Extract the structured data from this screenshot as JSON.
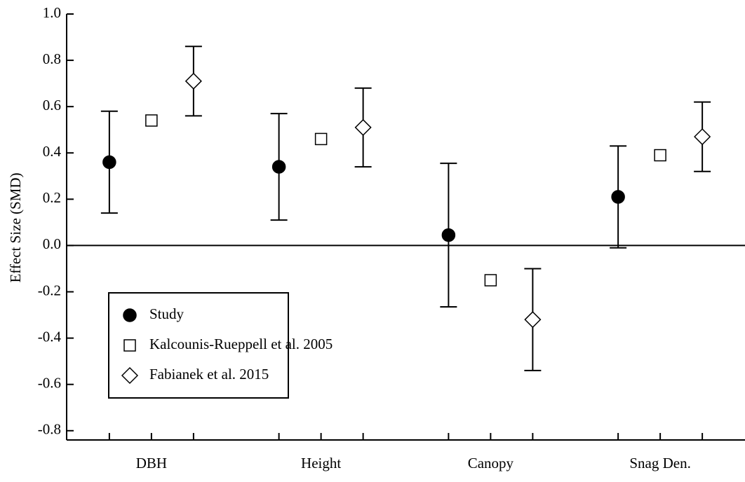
{
  "chart_data": {
    "type": "errorbar",
    "ylabel": "Effect Size (SMD)",
    "categories": [
      "DBH",
      "Height",
      "Canopy",
      "Snag Den."
    ],
    "series": [
      {
        "name": "Study",
        "color": "#000000",
        "marker": "circle",
        "values": [
          0.36,
          0.34,
          0.045,
          0.21
        ],
        "errors": [
          0.22,
          0.23,
          0.31,
          0.22
        ]
      },
      {
        "name": "Kalcounis-Rueppell et al. 2005",
        "color": "#ffffff",
        "marker": "square",
        "values": [
          0.54,
          0.46,
          -0.15,
          0.39
        ]
      },
      {
        "name": "Fabianek et al. 2015",
        "color": "#ffffff",
        "marker": "diamond",
        "values": [
          0.71,
          0.51,
          -0.32,
          0.47
        ],
        "errors": [
          0.15,
          0.17,
          0.22,
          0.15
        ]
      }
    ],
    "ylim": [
      -0.84,
      1.0
    ],
    "yticks": [
      {
        "value": 1.0,
        "label": "1.0"
      },
      0.8,
      0.6,
      0.4,
      0.2,
      {
        "value": 0,
        "label": "0.0"
      },
      -0.2,
      -0.4,
      -0.6,
      -0.8
    ],
    "legend": "lower left"
  }
}
